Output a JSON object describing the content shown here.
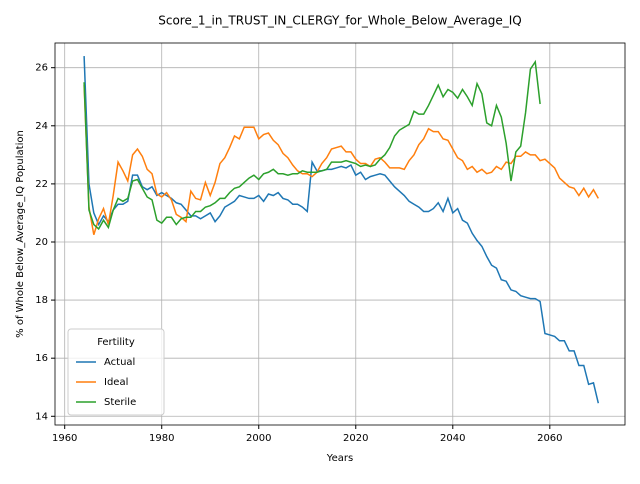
{
  "chart_data": {
    "type": "line",
    "title": "Score_1_in_TRUST_IN_CLERGY_for_Whole_Below_Average_IQ",
    "x_label": "Years",
    "y_label": "% of Whole Below_Average_IQ Population",
    "x": [
      1964,
      1965,
      1966,
      1967,
      1968,
      1969,
      1970,
      1971,
      1972,
      1973,
      1974,
      1975,
      1976,
      1977,
      1978,
      1979,
      1980,
      1981,
      1982,
      1983,
      1984,
      1985,
      1986,
      1987,
      1988,
      1989,
      1990,
      1991,
      1992,
      1993,
      1994,
      1995,
      1996,
      1997,
      1998,
      1999,
      2000,
      2001,
      2002,
      2003,
      2004,
      2005,
      2006,
      2007,
      2008,
      2009,
      2010,
      2011,
      2012,
      2013,
      2014,
      2015,
      2016,
      2017,
      2018,
      2019,
      2020,
      2021,
      2022,
      2023,
      2024,
      2025,
      2026,
      2027,
      2028,
      2029,
      2030,
      2031,
      2032,
      2033,
      2034,
      2035,
      2036,
      2037,
      2038,
      2039,
      2040,
      2041,
      2042,
      2043,
      2044,
      2045,
      2046,
      2047,
      2048,
      2049,
      2050,
      2051,
      2052,
      2053,
      2054,
      2055,
      2056,
      2057,
      2058,
      2059,
      2060,
      2061,
      2062,
      2063,
      2064,
      2065,
      2066,
      2067,
      2068,
      2069,
      2070
    ],
    "series": [
      {
        "name": "Actual",
        "color": "#1f77b4",
        "values": [
          26.4,
          22.0,
          21.0,
          20.6,
          20.9,
          20.7,
          21.1,
          21.3,
          21.3,
          21.4,
          22.3,
          22.3,
          21.9,
          21.8,
          21.9,
          21.6,
          21.7,
          21.6,
          21.5,
          21.35,
          21.3,
          21.1,
          20.9,
          20.9,
          20.8,
          20.9,
          21.0,
          20.7,
          20.9,
          21.2,
          21.3,
          21.4,
          21.6,
          21.55,
          21.5,
          21.5,
          21.6,
          21.4,
          21.65,
          21.6,
          21.7,
          21.5,
          21.45,
          21.3,
          21.3,
          21.2,
          21.05,
          22.75,
          22.45,
          22.45,
          22.5,
          22.5,
          22.55,
          22.6,
          22.55,
          22.65,
          22.3,
          22.4,
          22.15,
          22.25,
          22.3,
          22.35,
          22.3,
          22.1,
          21.9,
          21.75,
          21.6,
          21.4,
          21.3,
          21.2,
          21.05,
          21.05,
          21.15,
          21.35,
          21.05,
          21.5,
          21.0,
          21.15,
          20.75,
          20.65,
          20.3,
          20.05,
          19.85,
          19.5,
          19.2,
          19.1,
          18.7,
          18.65,
          18.35,
          18.3,
          18.15,
          18.1,
          18.05,
          18.05,
          17.95,
          16.85,
          16.8,
          16.75,
          16.6,
          16.6,
          16.25,
          16.25,
          15.75,
          15.75,
          15.1,
          15.15,
          14.45
        ]
      },
      {
        "name": "Ideal",
        "color": "#ff7f0e",
        "values": [
          25.4,
          21.2,
          20.25,
          20.8,
          21.15,
          20.6,
          21.6,
          22.75,
          22.45,
          22.1,
          23.0,
          23.2,
          22.95,
          22.5,
          22.35,
          21.65,
          21.55,
          21.7,
          21.45,
          20.95,
          20.85,
          20.7,
          21.75,
          21.5,
          21.45,
          22.05,
          21.6,
          22.05,
          22.7,
          22.9,
          23.25,
          23.65,
          23.55,
          23.95,
          23.95,
          23.95,
          23.55,
          23.7,
          23.75,
          23.5,
          23.35,
          23.05,
          22.9,
          22.65,
          22.45,
          22.35,
          22.35,
          22.25,
          22.4,
          22.7,
          22.9,
          23.2,
          23.25,
          23.3,
          23.1,
          23.1,
          22.85,
          22.7,
          22.7,
          22.6,
          22.85,
          22.9,
          22.75,
          22.55,
          22.55,
          22.55,
          22.5,
          22.8,
          23.0,
          23.35,
          23.55,
          23.9,
          23.8,
          23.8,
          23.55,
          23.5,
          23.2,
          22.9,
          22.8,
          22.5,
          22.6,
          22.4,
          22.5,
          22.35,
          22.4,
          22.6,
          22.5,
          22.75,
          22.7,
          22.95,
          22.95,
          23.1,
          23.0,
          23.0,
          22.8,
          22.85,
          22.7,
          22.55,
          22.2,
          22.05,
          21.9,
          21.85,
          21.6,
          21.85,
          21.55,
          21.8,
          21.5
        ]
      },
      {
        "name": "Sterile",
        "color": "#2ca02c",
        "values": [
          25.5,
          21.1,
          20.6,
          20.45,
          20.75,
          20.5,
          21.1,
          21.5,
          21.4,
          21.5,
          22.1,
          22.15,
          21.85,
          21.55,
          21.45,
          20.75,
          20.65,
          20.85,
          20.85,
          20.6,
          20.8,
          20.85,
          20.85,
          21.05,
          21.05,
          21.2,
          21.25,
          21.35,
          21.5,
          21.5,
          21.7,
          21.85,
          21.9,
          22.05,
          22.2,
          22.3,
          22.15,
          22.35,
          22.4,
          22.5,
          22.35,
          22.35,
          22.3,
          22.35,
          22.35,
          22.45,
          22.4,
          22.4,
          22.4,
          22.45,
          22.5,
          22.75,
          22.75,
          22.75,
          22.8,
          22.75,
          22.7,
          22.6,
          22.65,
          22.6,
          22.65,
          22.85,
          23.0,
          23.25,
          23.65,
          23.85,
          23.95,
          24.05,
          24.5,
          24.4,
          24.4,
          24.7,
          25.05,
          25.4,
          25.0,
          25.25,
          25.15,
          24.95,
          25.25,
          25.0,
          24.7,
          25.45,
          25.1,
          24.1,
          24.0,
          24.7,
          24.3,
          23.4,
          22.1,
          23.1,
          23.3,
          24.45,
          25.95,
          26.2,
          24.75,
          null,
          null,
          null,
          null,
          null,
          null,
          null,
          null,
          null,
          null,
          null,
          null
        ]
      }
    ],
    "xlim": [
      1958,
      2075.5
    ],
    "xticks": [
      1960,
      1980,
      2000,
      2020,
      2040,
      2060
    ],
    "ylim": [
      13.7,
      26.85
    ],
    "yticks": [
      14,
      16,
      18,
      20,
      22,
      24,
      26
    ],
    "grid": true,
    "legend": {
      "title": "Fertility",
      "position": "lower left"
    }
  }
}
